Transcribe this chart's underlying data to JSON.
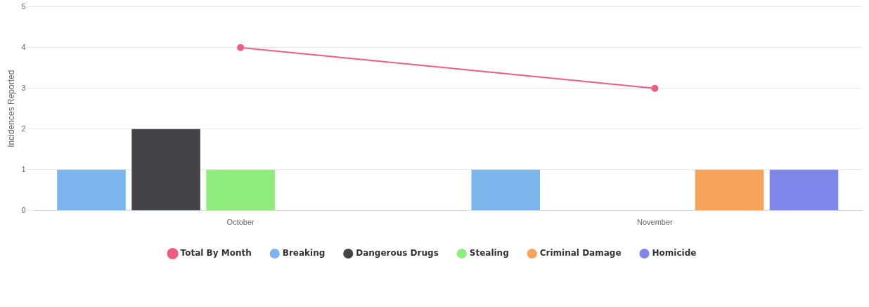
{
  "chart_data": {
    "type": "bar",
    "ylabel": "Incidences Reported",
    "categories": [
      "October",
      "November"
    ],
    "series": [
      {
        "name": "Breaking",
        "color": "#7cb5ec",
        "values": [
          1,
          1
        ]
      },
      {
        "name": "Dangerous Drugs",
        "color": "#434348",
        "values": [
          2,
          null
        ]
      },
      {
        "name": "Stealing",
        "color": "#90ed7d",
        "values": [
          1,
          null
        ]
      },
      {
        "name": "Criminal Damage",
        "color": "#f7a35c",
        "values": [
          null,
          1
        ]
      },
      {
        "name": "Homicide",
        "color": "#8085e9",
        "values": [
          null,
          1
        ]
      },
      {
        "name": "Total By Month",
        "type": "line",
        "color": "#f15c80",
        "values": [
          4,
          3
        ]
      }
    ],
    "ylim": [
      0,
      5
    ],
    "yticks": [
      0,
      1,
      2,
      3,
      4,
      5
    ],
    "grid": "y",
    "legend": "bottom",
    "marker": "circle"
  }
}
